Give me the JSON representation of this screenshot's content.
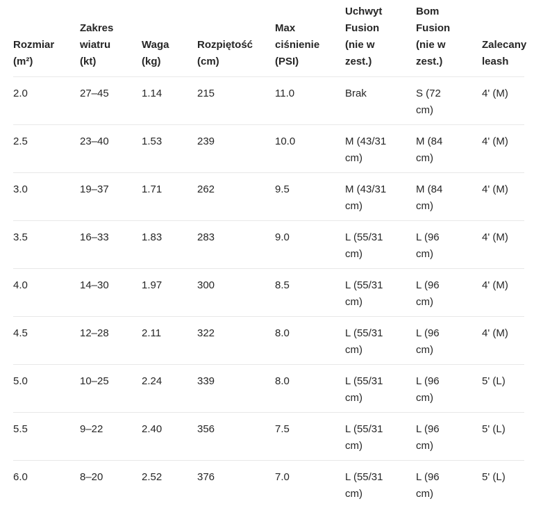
{
  "colors": {
    "background": "#ffffff",
    "text": "#262626",
    "divider": "#e8e8e8"
  },
  "table": {
    "columns": [
      {
        "label": "Rozmiar\n(m²)"
      },
      {
        "label": "Zakres\nwiatru\n(kt)"
      },
      {
        "label": "Waga\n(kg)"
      },
      {
        "label": "Rozpiętość\n(cm)"
      },
      {
        "label": "Max\nciśnienie\n(PSI)"
      },
      {
        "label": "Uchwyt\nFusion\n(nie w\nzest.)"
      },
      {
        "label": "Bom\nFusion\n(nie w\nzest.)"
      },
      {
        "label": "Zalecany\nleash"
      }
    ],
    "rows": [
      {
        "cells": [
          "2.0",
          "27–45",
          "1.14",
          "215",
          "11.0",
          "Brak",
          "S (72\ncm)",
          "4' (M)"
        ]
      },
      {
        "cells": [
          "2.5",
          "23–40",
          "1.53",
          "239",
          "10.0",
          "M (43/31\ncm)",
          "M (84\ncm)",
          "4' (M)"
        ]
      },
      {
        "cells": [
          "3.0",
          "19–37",
          "1.71",
          "262",
          "9.5",
          "M (43/31\ncm)",
          "M (84\ncm)",
          "4' (M)"
        ]
      },
      {
        "cells": [
          "3.5",
          "16–33",
          "1.83",
          "283",
          "9.0",
          "L (55/31\ncm)",
          "L (96\ncm)",
          "4' (M)"
        ]
      },
      {
        "cells": [
          "4.0",
          "14–30",
          "1.97",
          "300",
          "8.5",
          "L (55/31\ncm)",
          "L (96\ncm)",
          "4' (M)"
        ]
      },
      {
        "cells": [
          "4.5",
          "12–28",
          "2.11",
          "322",
          "8.0",
          "L (55/31\ncm)",
          "L (96\ncm)",
          "4' (M)"
        ]
      },
      {
        "cells": [
          "5.0",
          "10–25",
          "2.24",
          "339",
          "8.0",
          "L (55/31\ncm)",
          "L (96\ncm)",
          "5' (L)"
        ]
      },
      {
        "cells": [
          "5.5",
          "9–22",
          "2.40",
          "356",
          "7.5",
          "L (55/31\ncm)",
          "L (96\ncm)",
          "5' (L)"
        ]
      },
      {
        "cells": [
          "6.0",
          "8–20",
          "2.52",
          "376",
          "7.0",
          "L (55/31\ncm)",
          "L (96\ncm)",
          "5' (L)"
        ]
      }
    ]
  }
}
